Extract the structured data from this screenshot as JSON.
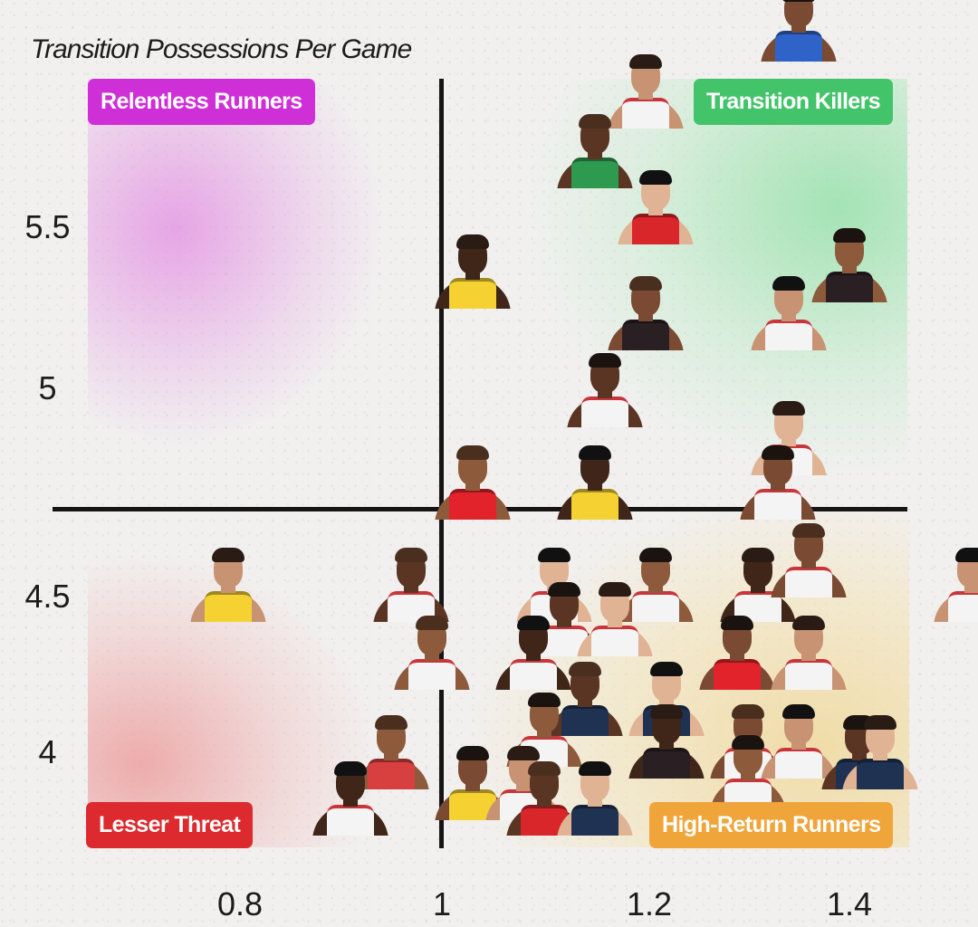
{
  "chart_data": {
    "type": "scatter",
    "title": "Transition Possessions Per Game",
    "xlabel": "",
    "ylabel": "Transition Possessions Per Game",
    "x_ticks": [
      "0.8",
      "1",
      "1.2",
      "1.4"
    ],
    "y_ticks": [
      "5.5",
      "5",
      "4.5",
      "4"
    ],
    "xlim": [
      0.6,
      1.45
    ],
    "ylim": [
      3.75,
      5.9
    ],
    "x_divider": 1.0,
    "y_divider": 4.75,
    "grid": false,
    "legend": "quadrant labels",
    "quadrants": [
      {
        "name": "Relentless Runners",
        "position": "top-left",
        "color": "#cf2fd6"
      },
      {
        "name": "Transition Killers",
        "position": "top-right",
        "color": "#43c46a"
      },
      {
        "name": "Lesser Threat",
        "position": "bottom-left",
        "color": "#dc2a2e"
      },
      {
        "name": "High-Return Runners",
        "position": "bottom-right",
        "color": "#f0a53a"
      }
    ],
    "marker": "player headshot",
    "points": [
      {
        "x": 1.35,
        "y": 6.0,
        "jersey": "#2f63c8"
      },
      {
        "x": 1.2,
        "y": 5.8,
        "jersey": "#f4f4f4"
      },
      {
        "x": 1.15,
        "y": 5.62,
        "jersey": "#2e9a4f"
      },
      {
        "x": 1.21,
        "y": 5.45,
        "jersey": "#d8262a"
      },
      {
        "x": 1.4,
        "y": 5.27,
        "jersey": "#2a1f22"
      },
      {
        "x": 1.03,
        "y": 5.25,
        "jersey": "#f5d232"
      },
      {
        "x": 1.2,
        "y": 5.12,
        "jersey": "#2a1f22"
      },
      {
        "x": 1.34,
        "y": 5.12,
        "jersey": "#f4f4f4"
      },
      {
        "x": 1.16,
        "y": 4.92,
        "jersey": "#f4f4f4"
      },
      {
        "x": 1.34,
        "y": 4.82,
        "jersey": "#f4f4f4"
      },
      {
        "x": 1.03,
        "y": 4.72,
        "jersey": "#e2232b"
      },
      {
        "x": 1.15,
        "y": 4.72,
        "jersey": "#f5d232"
      },
      {
        "x": 1.33,
        "y": 4.72,
        "jersey": "#f4f4f4"
      },
      {
        "x": 0.79,
        "y": 4.42,
        "jersey": "#f5d232"
      },
      {
        "x": 0.97,
        "y": 4.42,
        "jersey": "#f4f4f4"
      },
      {
        "x": 1.11,
        "y": 4.42,
        "jersey": "#f4f4f4"
      },
      {
        "x": 1.21,
        "y": 4.42,
        "jersey": "#f4f4f4"
      },
      {
        "x": 1.31,
        "y": 4.42,
        "jersey": "#f4f4f4"
      },
      {
        "x": 1.36,
        "y": 4.5,
        "jersey": "#f4f4f4"
      },
      {
        "x": 1.52,
        "y": 4.42,
        "jersey": "#f4f4f4"
      },
      {
        "x": 1.12,
        "y": 4.31,
        "jersey": "#f4f4f4"
      },
      {
        "x": 1.17,
        "y": 4.31,
        "jersey": "#f4f4f4"
      },
      {
        "x": 0.99,
        "y": 4.2,
        "jersey": "#f4f4f4"
      },
      {
        "x": 1.09,
        "y": 4.2,
        "jersey": "#f4f4f4"
      },
      {
        "x": 1.29,
        "y": 4.2,
        "jersey": "#e2232b"
      },
      {
        "x": 1.36,
        "y": 4.2,
        "jersey": "#f4f4f4"
      },
      {
        "x": 1.14,
        "y": 4.05,
        "jersey": "#1f3252"
      },
      {
        "x": 1.22,
        "y": 4.05,
        "jersey": "#1f3252"
      },
      {
        "x": 1.1,
        "y": 3.96,
        "jersey": "#f4f4f4"
      },
      {
        "x": 1.22,
        "y": 3.93,
        "jersey": "#2a1f22"
      },
      {
        "x": 1.3,
        "y": 3.93,
        "jersey": "#f4f4f4"
      },
      {
        "x": 1.35,
        "y": 3.93,
        "jersey": "#f4f4f4"
      },
      {
        "x": 1.41,
        "y": 3.9,
        "jersey": "#1f3252"
      },
      {
        "x": 1.43,
        "y": 3.9,
        "jersey": "#1f3252"
      },
      {
        "x": 0.95,
        "y": 3.9,
        "jersey": "#d8403f"
      },
      {
        "x": 0.91,
        "y": 3.78,
        "jersey": "#f4f4f4"
      },
      {
        "x": 1.03,
        "y": 3.82,
        "jersey": "#f5d232"
      },
      {
        "x": 1.08,
        "y": 3.82,
        "jersey": "#f4f4f4"
      },
      {
        "x": 1.1,
        "y": 3.78,
        "jersey": "#d8262a"
      },
      {
        "x": 1.15,
        "y": 3.78,
        "jersey": "#1f3252"
      },
      {
        "x": 1.3,
        "y": 3.85,
        "jersey": "#f4f4f4"
      }
    ]
  },
  "title": "Transition Possessions Per Game",
  "quadrant_labels": {
    "top_left": "Relentless Runners",
    "top_right": "Transition Killers",
    "bottom_left": "Lesser Threat",
    "bottom_right": "High-Return Runners"
  },
  "colors": {
    "relentless": "#cf2fd6",
    "killers": "#43c46a",
    "lesser": "#dc2a2e",
    "high_return": "#f0a53a"
  },
  "y_axis": {
    "t0": "5.5",
    "t1": "5",
    "t2": "4.5",
    "t3": "4"
  },
  "x_axis": {
    "t0": "0.8",
    "t1": "1",
    "t2": "1.2",
    "t3": "1.4"
  }
}
